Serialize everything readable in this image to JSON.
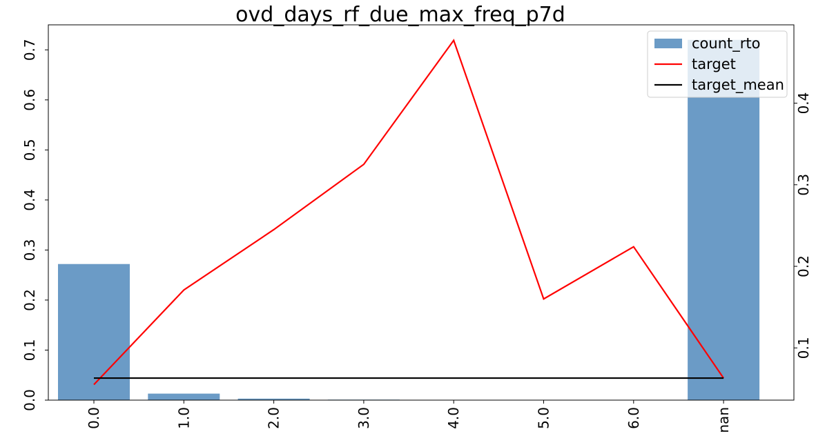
{
  "chart_data": {
    "type": "bar",
    "title": "ovd_days_rf_due_max_freq_p7d",
    "categories": [
      "0.0",
      "1.0",
      "2.0",
      "3.0",
      "4.0",
      "5.0",
      "6.0",
      "nan"
    ],
    "series": [
      {
        "name": "count_rto",
        "type": "bar",
        "axis": "left",
        "color": "#6b9bc6",
        "values": [
          0.272,
          0.013,
          0.003,
          0.001,
          0.0,
          0.0,
          0.0,
          0.72
        ]
      },
      {
        "name": "target",
        "type": "line",
        "axis": "right",
        "color": "#ff0000",
        "values": [
          0.055,
          0.171,
          0.245,
          0.325,
          0.477,
          0.16,
          0.224,
          0.063
        ]
      },
      {
        "name": "target_mean",
        "type": "line",
        "axis": "right",
        "color": "#000000",
        "values": [
          0.063,
          0.063,
          0.063,
          0.063,
          0.063,
          0.063,
          0.063,
          0.063
        ]
      }
    ],
    "y_left": {
      "ylim": [
        0,
        0.75
      ],
      "ticks": [
        "0.0",
        "0.1",
        "0.2",
        "0.3",
        "0.4",
        "0.5",
        "0.6",
        "0.7"
      ],
      "tick_values": [
        0,
        0.1,
        0.2,
        0.3,
        0.4,
        0.5,
        0.6,
        0.7
      ]
    },
    "y_right": {
      "ylim": [
        0.036,
        0.496
      ],
      "ticks": [
        "0.1",
        "0.2",
        "0.3",
        "0.4"
      ],
      "tick_values": [
        0.1,
        0.2,
        0.3,
        0.4
      ]
    },
    "xlabel": "",
    "ylabel": "",
    "grid": false,
    "legend_position": "top-right"
  }
}
